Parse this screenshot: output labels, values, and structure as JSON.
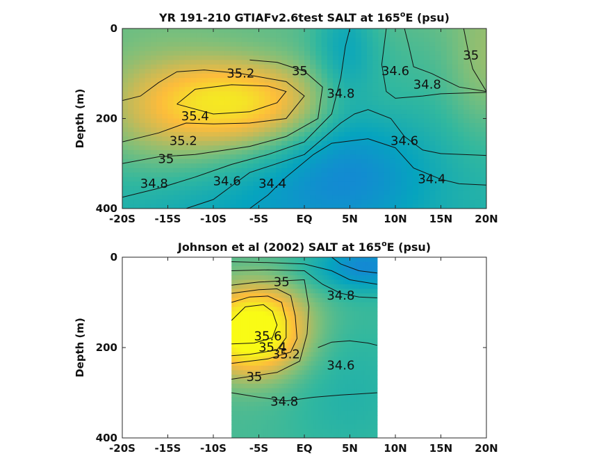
{
  "chart_data": [
    {
      "type": "heatmap",
      "title": "YR 191-210 GTIAFv2.6test SALT at 165",
      "title_sup": "o",
      "title_suffix": "E (psu)",
      "ylabel": "Depth (m)",
      "xlabel": "",
      "xlim": [
        -20,
        20
      ],
      "ylim": [
        0,
        400
      ],
      "y_reversed": true,
      "xtick_labels": [
        "-20S",
        "-15S",
        "-10S",
        "-5S",
        "EQ",
        "5N",
        "10N",
        "15N",
        "20N"
      ],
      "ytick_labels": [
        "0",
        "200",
        "400"
      ],
      "colormap": "parula",
      "data_extent_x": [
        -20,
        20
      ],
      "contour_labels": [
        {
          "text": "35.2",
          "lat": -7.0,
          "depth": 100
        },
        {
          "text": "35",
          "lat": -0.5,
          "depth": 95
        },
        {
          "text": "34.8",
          "lat": 4.0,
          "depth": 145
        },
        {
          "text": "34.6",
          "lat": 10.0,
          "depth": 95
        },
        {
          "text": "34.8",
          "lat": 13.5,
          "depth": 125
        },
        {
          "text": "35",
          "lat": 18.3,
          "depth": 60
        },
        {
          "text": "35.4",
          "lat": -12.0,
          "depth": 195
        },
        {
          "text": "35.2",
          "lat": -13.3,
          "depth": 250
        },
        {
          "text": "35",
          "lat": -15.2,
          "depth": 290
        },
        {
          "text": "34.8",
          "lat": -16.5,
          "depth": 345
        },
        {
          "text": "34.6",
          "lat": -8.5,
          "depth": 340
        },
        {
          "text": "34.4",
          "lat": -3.5,
          "depth": 345
        },
        {
          "text": "34.6",
          "lat": 11.0,
          "depth": 250
        },
        {
          "text": "34.4",
          "lat": 14.0,
          "depth": 335
        }
      ],
      "contours": [
        {
          "level": "35.4",
          "points": [
            [
              -14,
              168
            ],
            [
              -12,
              135
            ],
            [
              -8,
              125
            ],
            [
              -4,
              128
            ],
            [
              -2,
              140
            ],
            [
              -3,
              165
            ],
            [
              -6,
              185
            ],
            [
              -10,
              190
            ],
            [
              -14,
              168
            ]
          ]
        },
        {
          "level": "35.2",
          "points": [
            [
              -20,
              252
            ],
            [
              -16,
              232
            ],
            [
              -13,
              210
            ],
            [
              -10,
              212
            ],
            [
              -6,
              210
            ],
            [
              -2,
              200
            ],
            [
              0,
              150
            ],
            [
              -2,
              118
            ],
            [
              -7,
              100
            ],
            [
              -11,
              92
            ],
            [
              -14,
              96
            ],
            [
              -16,
              120
            ],
            [
              -18,
              150
            ],
            [
              -20,
              160
            ]
          ]
        },
        {
          "level": "35",
          "points": [
            [
              -20,
              300
            ],
            [
              -16,
              285
            ],
            [
              -12,
              280
            ],
            [
              -6,
              262
            ],
            [
              -2,
              240
            ],
            [
              1.5,
              200
            ],
            [
              2,
              130
            ],
            [
              0,
              95
            ],
            [
              -3,
              75
            ],
            [
              -6,
              70
            ]
          ]
        },
        {
          "level": "34.8",
          "points": [
            [
              -20,
              375
            ],
            [
              -16,
              355
            ],
            [
              -12,
              330
            ],
            [
              -8,
              302
            ],
            [
              -4,
              280
            ],
            [
              0,
              252
            ],
            [
              3,
              190
            ],
            [
              4,
              110
            ],
            [
              4.5,
              40
            ],
            [
              5,
              0
            ]
          ]
        },
        {
          "level": "34.6",
          "points": [
            [
              -13,
              400
            ],
            [
              -10,
              380
            ],
            [
              -8,
              350
            ],
            [
              -6,
              320
            ],
            [
              -3,
              300
            ],
            [
              0,
              280
            ],
            [
              4,
              210
            ],
            [
              5.5,
              190
            ],
            [
              7,
              180
            ],
            [
              9.5,
              200
            ],
            [
              11,
              240
            ],
            [
              13,
              270
            ],
            [
              15,
              278
            ],
            [
              20,
              282
            ]
          ]
        },
        {
          "level": "34.4",
          "points": [
            [
              -6,
              400
            ],
            [
              -4,
              370
            ],
            [
              -2,
              330
            ],
            [
              1,
              280
            ],
            [
              3,
              255
            ],
            [
              7,
              245
            ],
            [
              10,
              265
            ],
            [
              12,
              310
            ],
            [
              15,
              335
            ],
            [
              17,
              345
            ],
            [
              20,
              348
            ]
          ]
        },
        {
          "level": "34.6",
          "points": [
            [
              9,
              0
            ],
            [
              8.5,
              80
            ],
            [
              9,
              140
            ],
            [
              10,
              155
            ],
            [
              13,
              150
            ],
            [
              15,
              145
            ],
            [
              20,
              142
            ]
          ]
        },
        {
          "level": "34.8",
          "points": [
            [
              11,
              0
            ],
            [
              11.5,
              40
            ],
            [
              12,
              85
            ],
            [
              14,
              100
            ],
            [
              17,
              130
            ],
            [
              20,
              140
            ]
          ]
        },
        {
          "level": "35",
          "points": [
            [
              17.5,
              0
            ],
            [
              18,
              50
            ],
            [
              18.5,
              90
            ],
            [
              20,
              140
            ]
          ]
        }
      ]
    },
    {
      "type": "heatmap",
      "title": "Johnson et al (2002) SALT at 165",
      "title_sup": "o",
      "title_suffix": "E (psu)",
      "ylabel": "Depth (m)",
      "xlabel": "",
      "xlim": [
        -20,
        20
      ],
      "ylim": [
        0,
        400
      ],
      "y_reversed": true,
      "xtick_labels": [
        "-20S",
        "-15S",
        "-10S",
        "-5S",
        "EQ",
        "5N",
        "10N",
        "15N",
        "20N"
      ],
      "ytick_labels": [
        "0",
        "200",
        "400"
      ],
      "colormap": "parula",
      "data_extent_x": [
        -8,
        8
      ],
      "contour_labels": [
        {
          "text": "35",
          "lat": -2.5,
          "depth": 55
        },
        {
          "text": "34.8",
          "lat": 4.0,
          "depth": 85
        },
        {
          "text": "35.6",
          "lat": -4.0,
          "depth": 175
        },
        {
          "text": "35.4",
          "lat": -3.5,
          "depth": 200
        },
        {
          "text": "35.2",
          "lat": -2.0,
          "depth": 215
        },
        {
          "text": "35",
          "lat": -5.5,
          "depth": 265
        },
        {
          "text": "34.6",
          "lat": 4.0,
          "depth": 240
        },
        {
          "text": "34.8",
          "lat": -2.2,
          "depth": 320
        }
      ],
      "contours": [
        {
          "level": "35.6",
          "points": [
            [
              -8,
              140
            ],
            [
              -6.5,
              110
            ],
            [
              -4.5,
              105
            ],
            [
              -3.5,
              120
            ],
            [
              -3,
              150
            ],
            [
              -3.5,
              178
            ],
            [
              -5.5,
              190
            ],
            [
              -8,
              192
            ]
          ]
        },
        {
          "level": "35.4",
          "points": [
            [
              -8,
              100
            ],
            [
              -6,
              88
            ],
            [
              -4,
              86
            ],
            [
              -2.5,
              100
            ],
            [
              -2,
              140
            ],
            [
              -2,
              178
            ],
            [
              -3,
              205
            ],
            [
              -6,
              215
            ],
            [
              -8,
              218
            ]
          ]
        },
        {
          "level": "35.2",
          "points": [
            [
              -8,
              80
            ],
            [
              -5,
              72
            ],
            [
              -3,
              70
            ],
            [
              -1.5,
              85
            ],
            [
              -1,
              130
            ],
            [
              -0.8,
              180
            ],
            [
              -1.5,
              210
            ],
            [
              -4,
              225
            ],
            [
              -8,
              235
            ]
          ]
        },
        {
          "level": "35",
          "points": [
            [
              -8,
              62
            ],
            [
              -5,
              55
            ],
            [
              -2,
              52
            ],
            [
              0,
              50
            ],
            [
              0.5,
              110
            ],
            [
              0.3,
              170
            ],
            [
              -0.5,
              230
            ],
            [
              -3,
              255
            ],
            [
              -8,
              270
            ]
          ]
        },
        {
          "level": "34.8",
          "points": [
            [
              -8,
              30
            ],
            [
              -4,
              28
            ],
            [
              0,
              30
            ],
            [
              2,
              60
            ],
            [
              4,
              80
            ],
            [
              6,
              88
            ],
            [
              8,
              90
            ]
          ]
        },
        {
          "level": "34.8",
          "points": [
            [
              -8,
              300
            ],
            [
              -5,
              310
            ],
            [
              -2,
              318
            ],
            [
              1,
              310
            ],
            [
              4,
              305
            ],
            [
              8,
              300
            ]
          ]
        },
        {
          "level": "34.6",
          "points": [
            [
              -8,
              10
            ],
            [
              -4,
              12
            ],
            [
              0,
              15
            ],
            [
              3,
              30
            ],
            [
              5,
              50
            ],
            [
              8,
              60
            ]
          ]
        },
        {
          "level": "34.6",
          "points": [
            [
              1.5,
              200
            ],
            [
              3,
              188
            ],
            [
              5,
              185
            ],
            [
              7,
              190
            ],
            [
              8,
              195
            ]
          ]
        },
        {
          "level": "34.4",
          "points": [
            [
              3,
              0
            ],
            [
              4,
              15
            ],
            [
              6,
              30
            ],
            [
              8,
              35
            ]
          ]
        }
      ]
    }
  ]
}
